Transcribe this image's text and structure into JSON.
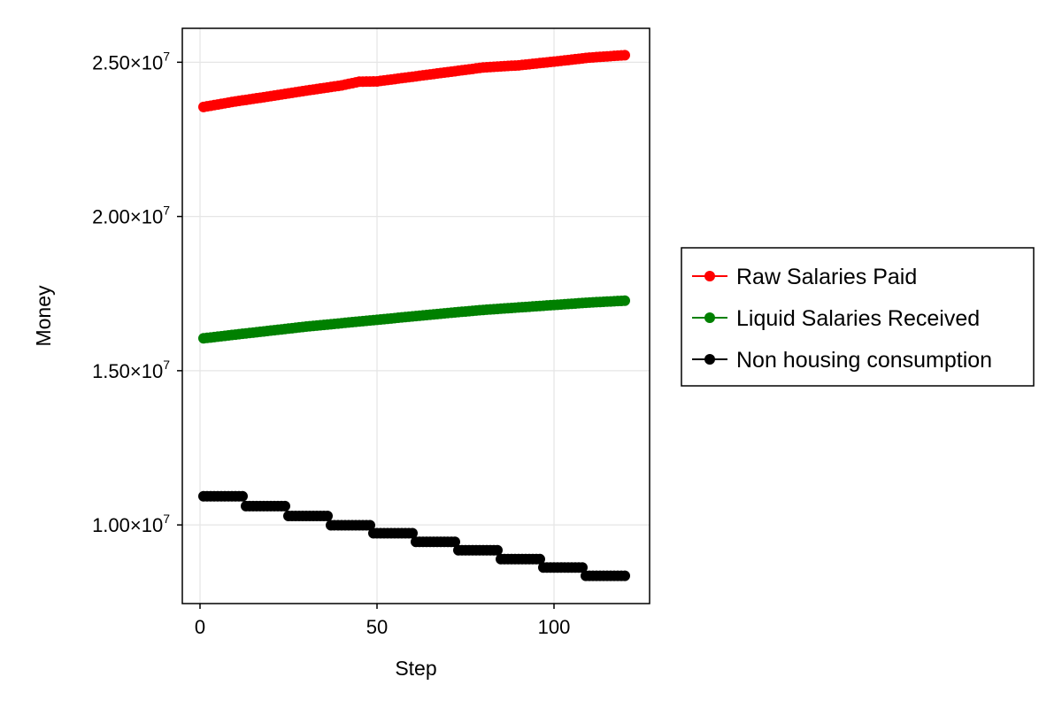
{
  "chart_data": {
    "type": "scatter",
    "title": "",
    "xlabel": "Step",
    "ylabel": "Money",
    "xlim": [
      -5,
      127
    ],
    "ylim": [
      7450000,
      26100000
    ],
    "grid": true,
    "legend_position": "right",
    "x_ticks": [
      {
        "value": 0,
        "label": "0"
      },
      {
        "value": 50,
        "label": "50"
      },
      {
        "value": 100,
        "label": "100"
      }
    ],
    "y_ticks": [
      {
        "value": 10000000,
        "mantissa": "1.00×10",
        "exponent": "7"
      },
      {
        "value": 15000000,
        "mantissa": "1.50×10",
        "exponent": "7"
      },
      {
        "value": 20000000,
        "mantissa": "2.00×10",
        "exponent": "7"
      },
      {
        "value": 25000000,
        "mantissa": "2.50×10",
        "exponent": "7"
      }
    ],
    "series": [
      {
        "name": "Raw Salaries Paid",
        "color": "#ff0000",
        "x_range": [
          1,
          120
        ],
        "anchors": [
          [
            1,
            23550000
          ],
          [
            10,
            23730000
          ],
          [
            20,
            23900000
          ],
          [
            30,
            24080000
          ],
          [
            40,
            24250000
          ],
          [
            45,
            24370000
          ],
          [
            50,
            24380000
          ],
          [
            60,
            24530000
          ],
          [
            70,
            24680000
          ],
          [
            80,
            24830000
          ],
          [
            90,
            24900000
          ],
          [
            100,
            25020000
          ],
          [
            110,
            25150000
          ],
          [
            120,
            25230000
          ]
        ]
      },
      {
        "name": "Liquid Salaries Received",
        "color": "#008000",
        "x_range": [
          1,
          120
        ],
        "anchors": [
          [
            1,
            16050000
          ],
          [
            10,
            16170000
          ],
          [
            20,
            16300000
          ],
          [
            30,
            16430000
          ],
          [
            40,
            16540000
          ],
          [
            50,
            16650000
          ],
          [
            60,
            16760000
          ],
          [
            70,
            16870000
          ],
          [
            80,
            16970000
          ],
          [
            90,
            17050000
          ],
          [
            100,
            17130000
          ],
          [
            110,
            17210000
          ],
          [
            120,
            17270000
          ]
        ]
      },
      {
        "name": "Non housing consumption",
        "color": "#000000",
        "x_range": [
          1,
          120
        ],
        "steps": [
          {
            "from": 1,
            "to": 12,
            "value": 10930000
          },
          {
            "from": 13,
            "to": 24,
            "value": 10610000
          },
          {
            "from": 25,
            "to": 36,
            "value": 10290000
          },
          {
            "from": 37,
            "to": 48,
            "value": 9990000
          },
          {
            "from": 49,
            "to": 60,
            "value": 9730000
          },
          {
            "from": 61,
            "to": 72,
            "value": 9450000
          },
          {
            "from": 73,
            "to": 84,
            "value": 9180000
          },
          {
            "from": 85,
            "to": 96,
            "value": 8890000
          },
          {
            "from": 97,
            "to": 108,
            "value": 8620000
          },
          {
            "from": 109,
            "to": 120,
            "value": 8350000
          }
        ]
      }
    ]
  }
}
